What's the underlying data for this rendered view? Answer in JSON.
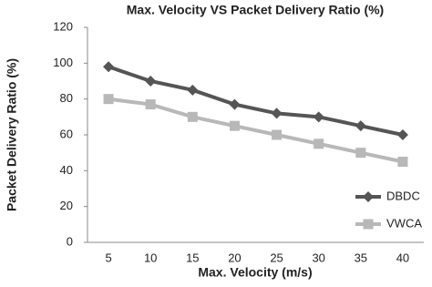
{
  "chart_data": {
    "type": "line",
    "title": "Max. Velocity VS Packet Delivery Ratio (%)",
    "x_label": "Max. Velocity (m/s)",
    "y_label": "Packet Delivery Ratio (%)",
    "categories": [
      5,
      10,
      15,
      20,
      25,
      30,
      35,
      40
    ],
    "series": [
      {
        "name": "DBDC",
        "color": "#555555",
        "marker": "diamond",
        "values": [
          98,
          90,
          85,
          77,
          72,
          70,
          65,
          60
        ]
      },
      {
        "name": "VWCA",
        "color": "#b8b8b8",
        "marker": "square",
        "values": [
          80,
          77,
          70,
          65,
          60,
          55,
          50,
          45
        ]
      }
    ],
    "ylim": [
      0,
      120
    ],
    "yticks": [
      0,
      20,
      40,
      60,
      80,
      100,
      120
    ],
    "grid": false,
    "legend": "right"
  }
}
